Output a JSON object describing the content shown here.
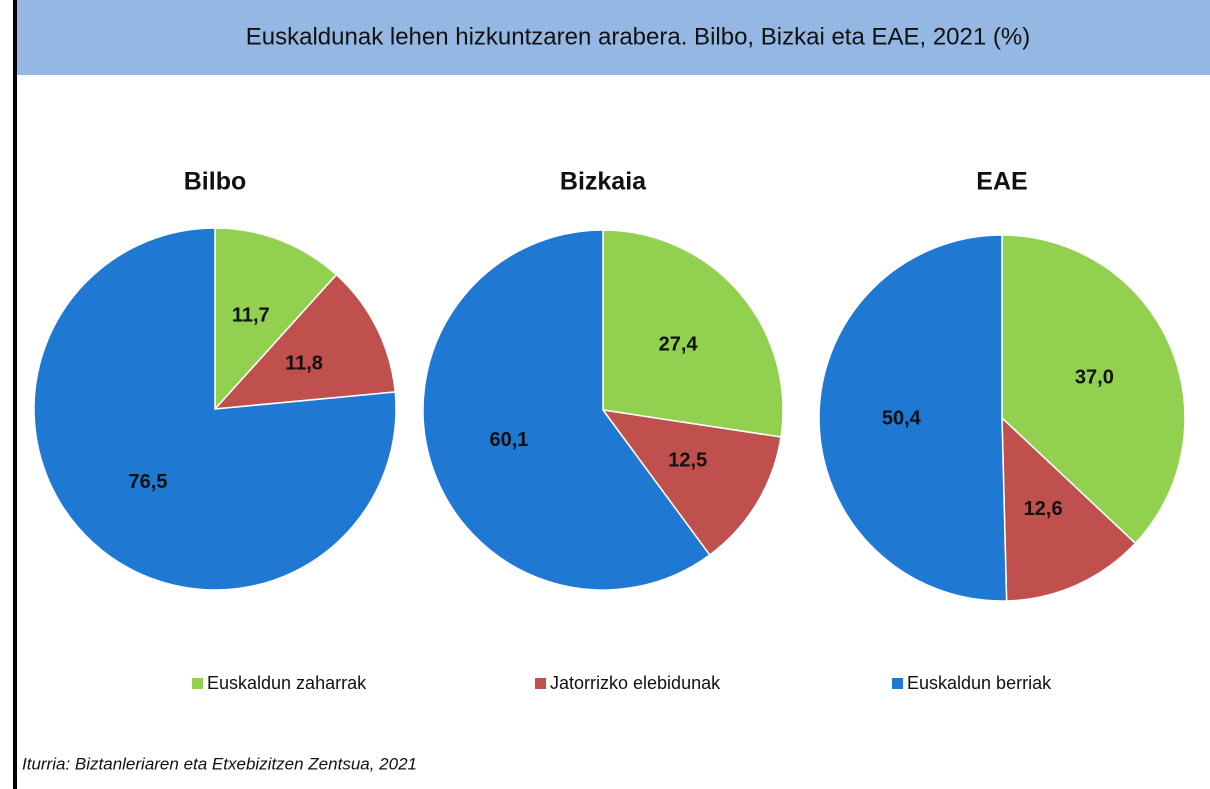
{
  "title": "Euskaldunak lehen hizkuntzaren arabera. Bilbo, Bizkai eta EAE, 2021 (%)",
  "legend": [
    "Euskaldun zaharrak",
    "Jatorrizko elebidunak",
    "Euskaldun berriak"
  ],
  "colors": [
    "#92d050",
    "#c0504d",
    "#1f78d1"
  ],
  "source": "Iturria: Biztanleriaren eta Etxebizitzen Zentsua, 2021",
  "chart_data": [
    {
      "type": "pie",
      "title": "Bilbo",
      "values": [
        11.7,
        11.8,
        76.5
      ],
      "value_labels": [
        "11,7",
        "11,8",
        "76,5"
      ]
    },
    {
      "type": "pie",
      "title": "Bizkaia",
      "values": [
        27.4,
        12.5,
        60.1
      ],
      "value_labels": [
        "27,4",
        "12,5",
        "60,1"
      ]
    },
    {
      "type": "pie",
      "title": "EAE",
      "values": [
        37.0,
        12.6,
        50.4
      ],
      "value_labels": [
        "37,0",
        "12,6",
        "50,4"
      ]
    }
  ]
}
